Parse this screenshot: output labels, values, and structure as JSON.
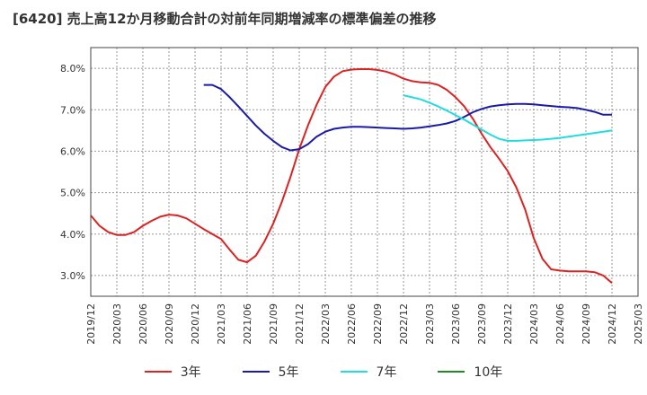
{
  "title": "[6420]  売上高12か月移動合計の対前年同期増減率の標準偏差の推移",
  "chart_data": {
    "type": "line",
    "ylim": [
      2.5,
      8.5
    ],
    "yticks": [
      3.0,
      4.0,
      5.0,
      6.0,
      7.0,
      8.0
    ],
    "ytick_labels": [
      "3.0%",
      "4.0%",
      "5.0%",
      "6.0%",
      "7.0%",
      "8.0%"
    ],
    "xlim": [
      "2019/12",
      "2025/03"
    ],
    "xtick_labels": [
      "2019/12",
      "2020/03",
      "2020/06",
      "2020/09",
      "2020/12",
      "2021/03",
      "2021/06",
      "2021/09",
      "2021/12",
      "2022/03",
      "2022/06",
      "2022/09",
      "2022/12",
      "2023/03",
      "2023/06",
      "2023/09",
      "2023/12",
      "2024/03",
      "2024/06",
      "2024/09",
      "2024/12",
      "2025/03"
    ],
    "grid": true,
    "legend_position": "bottom",
    "series": [
      {
        "name": "3年",
        "color": "#dd2222",
        "x": [
          "2019/12",
          "2020/01",
          "2020/02",
          "2020/03",
          "2020/04",
          "2020/05",
          "2020/06",
          "2020/07",
          "2020/08",
          "2020/09",
          "2020/10",
          "2020/11",
          "2020/12",
          "2021/01",
          "2021/02",
          "2021/03",
          "2021/04",
          "2021/05",
          "2021/06",
          "2021/07",
          "2021/08",
          "2021/09",
          "2021/10",
          "2021/11",
          "2021/12",
          "2022/01",
          "2022/02",
          "2022/03",
          "2022/04",
          "2022/05",
          "2022/06",
          "2022/07",
          "2022/08",
          "2022/09",
          "2022/10",
          "2022/11",
          "2022/12",
          "2023/01",
          "2023/02",
          "2023/03",
          "2023/04",
          "2023/05",
          "2023/06",
          "2023/07",
          "2023/08",
          "2023/09",
          "2023/10",
          "2023/11",
          "2023/12",
          "2024/01",
          "2024/02",
          "2024/03",
          "2024/04",
          "2024/05",
          "2024/06",
          "2024/07",
          "2024/08",
          "2024/09",
          "2024/10",
          "2024/11",
          "2024/12"
        ],
        "values": [
          4.45,
          4.2,
          4.05,
          3.98,
          3.98,
          4.05,
          4.2,
          4.32,
          4.42,
          4.47,
          4.45,
          4.38,
          4.25,
          4.12,
          4.0,
          3.88,
          3.62,
          3.38,
          3.32,
          3.48,
          3.82,
          4.25,
          4.78,
          5.38,
          6.05,
          6.62,
          7.12,
          7.55,
          7.8,
          7.93,
          7.97,
          7.98,
          7.98,
          7.96,
          7.92,
          7.85,
          7.75,
          7.69,
          7.66,
          7.65,
          7.6,
          7.48,
          7.3,
          7.08,
          6.78,
          6.42,
          6.1,
          5.82,
          5.52,
          5.12,
          4.6,
          3.9,
          3.4,
          3.15,
          3.12,
          3.1,
          3.1,
          3.1,
          3.08,
          3.0,
          2.82
        ]
      },
      {
        "name": "5年",
        "color": "#1a1aaa",
        "x": [
          "2021/01",
          "2021/02",
          "2021/03",
          "2021/04",
          "2021/05",
          "2021/06",
          "2021/07",
          "2021/08",
          "2021/09",
          "2021/10",
          "2021/11",
          "2021/12",
          "2022/01",
          "2022/02",
          "2022/03",
          "2022/04",
          "2022/05",
          "2022/06",
          "2022/07",
          "2022/08",
          "2022/09",
          "2022/10",
          "2022/11",
          "2022/12",
          "2023/01",
          "2023/02",
          "2023/03",
          "2023/04",
          "2023/05",
          "2023/06",
          "2023/07",
          "2023/08",
          "2023/09",
          "2023/10",
          "2023/11",
          "2023/12",
          "2024/01",
          "2024/02",
          "2024/03",
          "2024/04",
          "2024/05",
          "2024/06",
          "2024/07",
          "2024/08",
          "2024/09",
          "2024/10",
          "2024/11",
          "2024/12"
        ],
        "values": [
          7.6,
          7.6,
          7.5,
          7.3,
          7.08,
          6.85,
          6.62,
          6.42,
          6.25,
          6.1,
          6.02,
          6.05,
          6.17,
          6.35,
          6.47,
          6.54,
          6.57,
          6.59,
          6.59,
          6.58,
          6.57,
          6.56,
          6.55,
          6.54,
          6.55,
          6.57,
          6.6,
          6.63,
          6.67,
          6.73,
          6.83,
          6.94,
          7.02,
          7.08,
          7.11,
          7.13,
          7.14,
          7.14,
          7.13,
          7.11,
          7.09,
          7.07,
          7.06,
          7.04,
          7.0,
          6.95,
          6.88,
          6.88
        ]
      },
      {
        "name": "7年",
        "color": "#22dddd",
        "x": [
          "2022/12",
          "2023/01",
          "2023/02",
          "2023/03",
          "2023/04",
          "2023/05",
          "2023/06",
          "2023/07",
          "2023/08",
          "2023/09",
          "2023/10",
          "2023/11",
          "2023/12",
          "2024/01",
          "2024/02",
          "2024/03",
          "2024/04",
          "2024/05",
          "2024/06",
          "2024/07",
          "2024/08",
          "2024/09",
          "2024/10",
          "2024/11",
          "2024/12"
        ],
        "values": [
          7.35,
          7.3,
          7.25,
          7.17,
          7.08,
          6.98,
          6.87,
          6.76,
          6.64,
          6.52,
          6.4,
          6.3,
          6.25,
          6.25,
          6.26,
          6.27,
          6.28,
          6.3,
          6.32,
          6.35,
          6.38,
          6.41,
          6.44,
          6.47,
          6.5
        ]
      },
      {
        "name": "10年",
        "color": "#228822",
        "x": [],
        "values": []
      }
    ]
  }
}
